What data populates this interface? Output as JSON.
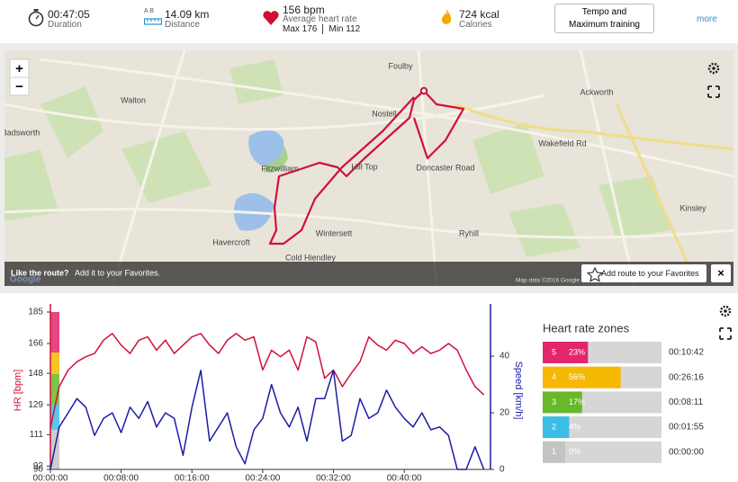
{
  "header": {
    "duration": {
      "value": "00:47:05",
      "label": "Duration"
    },
    "distance": {
      "ab": "A B",
      "value": "14.09 km",
      "label": "Distance"
    },
    "heart_rate": {
      "value": "156 bpm",
      "label": "Average heart rate",
      "max": "Max 176",
      "min": "Min 112"
    },
    "calories": {
      "value": "724 kcal",
      "label": "Calories"
    },
    "training_button": "Tempo and Maximum training",
    "more": "more"
  },
  "map": {
    "zoom_in": "+",
    "zoom_out": "−",
    "labels": [
      "Foulby",
      "Walton",
      "Ackworth",
      "Nostell",
      "Wakefield Rd",
      "Doncaster Road",
      "Fitzwilliam",
      "Wintersett",
      "Havercroft",
      "Cold Hiendley",
      "Ryhill",
      "Kinsley",
      "Badsworth",
      "Hill Top"
    ],
    "banner_bold": "Like the route?",
    "banner_text": "Add it to your Favorites.",
    "favorite_button": "Add route to your Favorites",
    "close": "×",
    "google": "Google",
    "attribution": "Map data ©2016 Google"
  },
  "chart_data": {
    "type": "line",
    "x": [
      0,
      1,
      2,
      3,
      4,
      5,
      6,
      7,
      8,
      9,
      10,
      11,
      12,
      13,
      14,
      15,
      16,
      17,
      18,
      19,
      20,
      21,
      22,
      23,
      24,
      25,
      26,
      27,
      28,
      29,
      30,
      31,
      32,
      33,
      34,
      35,
      36,
      37,
      38,
      39,
      40,
      41,
      42,
      43,
      44,
      45,
      46,
      47,
      48,
      49
    ],
    "xlim": [
      0,
      49.75
    ],
    "xticks": [
      {
        "value": 0,
        "label": "00:00:00"
      },
      {
        "value": 8,
        "label": "00:08:00"
      },
      {
        "value": 16,
        "label": "00:16:00"
      },
      {
        "value": 24,
        "label": "00:24:00"
      },
      {
        "value": 32,
        "label": "00:32:00"
      },
      {
        "value": 40,
        "label": "00:40:00"
      }
    ],
    "ylabel": "HR [bpm]",
    "ylim": [
      90,
      185
    ],
    "yticks": [
      90,
      92,
      111,
      129,
      148,
      166,
      185
    ],
    "y2label": "Speed [km/h]",
    "y2lim": [
      0,
      55.6
    ],
    "y2ticks": [
      0,
      20,
      40
    ],
    "grid": false,
    "series": [
      {
        "name": "HR",
        "color": "#d0103a",
        "values": [
          115,
          140,
          150,
          155,
          158,
          160,
          168,
          172,
          165,
          160,
          168,
          170,
          162,
          168,
          160,
          165,
          170,
          172,
          165,
          160,
          168,
          172,
          168,
          170,
          150,
          162,
          158,
          162,
          150,
          170,
          167,
          145,
          150,
          140,
          148,
          155,
          170,
          165,
          162,
          168,
          166,
          160,
          164,
          160,
          162,
          166,
          162,
          150,
          140,
          135
        ]
      },
      {
        "name": "Speed",
        "color": "#1c1caa",
        "axis": "y2",
        "values": [
          0,
          15,
          20,
          25,
          22,
          12,
          18,
          20,
          13,
          22,
          18,
          24,
          15,
          20,
          18,
          5,
          22,
          35,
          10,
          15,
          20,
          8,
          2,
          14,
          18,
          30,
          20,
          15,
          22,
          10,
          25,
          25,
          35,
          10,
          12,
          25,
          18,
          20,
          28,
          22,
          18,
          15,
          20,
          14,
          15,
          12,
          0,
          0,
          8,
          0
        ]
      }
    ]
  },
  "zones": {
    "title": "Heart rate zones",
    "rows": [
      {
        "zone": "5",
        "color": "#e3266b",
        "percent": 23,
        "percent_label": "23%",
        "time": "00:10:42"
      },
      {
        "zone": "4",
        "color": "#f6b800",
        "percent": 56,
        "percent_label": "56%",
        "time": "00:26:16"
      },
      {
        "zone": "3",
        "color": "#68b82c",
        "percent": 17,
        "percent_label": "17%",
        "time": "00:08:11"
      },
      {
        "zone": "2",
        "color": "#3bbde6",
        "percent": 4,
        "percent_label": "4%",
        "time": "00:01:55"
      },
      {
        "zone": "1",
        "color": "#c4c4c4",
        "percent": 0,
        "percent_label": "0%",
        "time": "00:00:00"
      }
    ]
  }
}
